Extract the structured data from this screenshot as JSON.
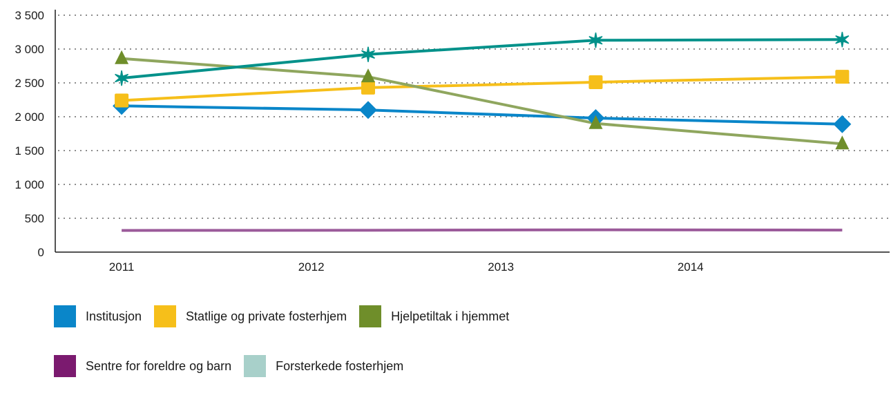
{
  "chart_data": {
    "type": "line",
    "title": "",
    "xlabel": "",
    "ylabel": "",
    "ylim": [
      0,
      3500
    ],
    "yticks": [
      0,
      500,
      1000,
      1500,
      2000,
      2500,
      3000,
      3500
    ],
    "ytick_labels": [
      "0",
      "500",
      "1 000",
      "1 500",
      "2 000",
      "2 500",
      "3 000",
      "3 500"
    ],
    "categories": [
      "2011",
      "2012",
      "2013",
      "2014"
    ],
    "x": [
      2011,
      2012.3,
      2013.5,
      2014.8
    ],
    "grid": "horizontal dotted",
    "legend_position": "bottom",
    "series": [
      {
        "name": "Institusjon",
        "color": "#0a86c9",
        "marker": "diamond",
        "values": [
          2160,
          2100,
          1980,
          1890
        ]
      },
      {
        "name": "Statlige og private fosterhjem",
        "color": "#f6bf1a",
        "marker": "square",
        "values": [
          2240,
          2430,
          2510,
          2590
        ]
      },
      {
        "name": "Hjelpetiltak i hjemmet",
        "color": "#8fa65e",
        "legend_color": "#6f8e2a",
        "marker": "triangle",
        "values": [
          2860,
          2590,
          1900,
          1600
        ]
      },
      {
        "name": "Sentre for foreldre og barn",
        "color": "#9b5a9a",
        "legend_color": "#7b1a6f",
        "marker": "none",
        "values": [
          320,
          322,
          330,
          325
        ]
      },
      {
        "name": "Forsterkede fosterhjem",
        "color": "#00918a",
        "legend_color": "#a8d0ca",
        "marker": "star",
        "values": [
          2570,
          2920,
          3130,
          3140
        ]
      }
    ]
  },
  "legend_rows": [
    [
      0,
      1,
      2
    ],
    [
      3,
      4
    ]
  ]
}
